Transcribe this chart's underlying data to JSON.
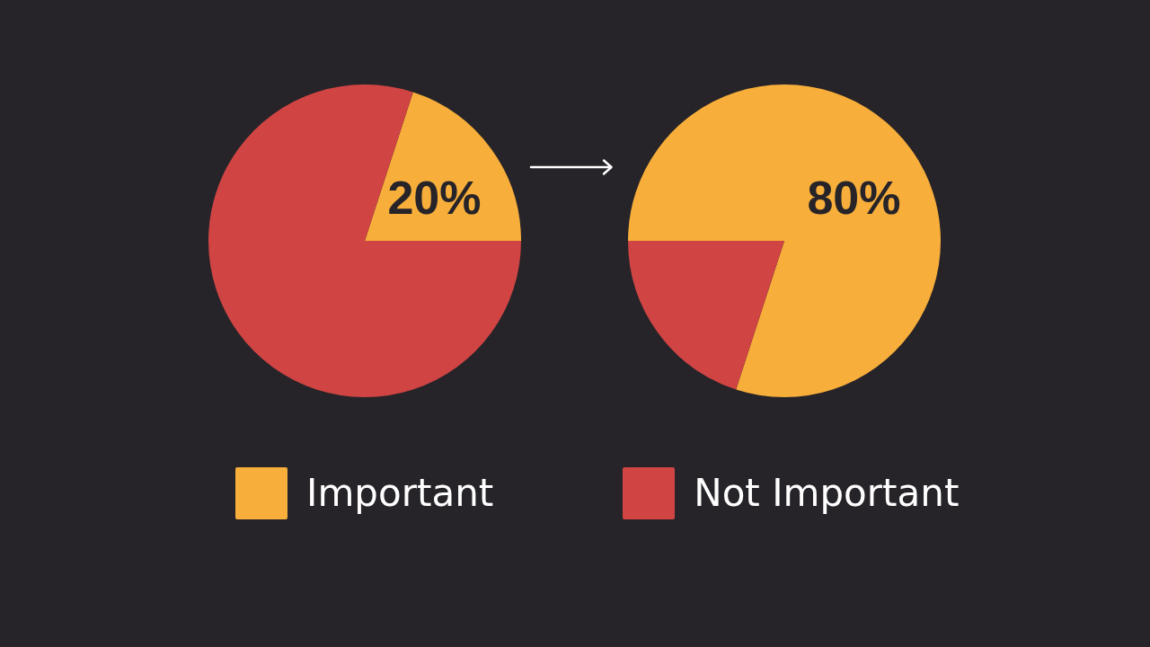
{
  "chart_data": {
    "type": "pie",
    "categories": [
      "Important",
      "Not Important"
    ],
    "colors": [
      "#f7ae3b",
      "#d04444"
    ],
    "legend": "bottom",
    "series": [
      {
        "values": [
          20,
          80
        ],
        "value_labels": [
          "20%",
          null
        ]
      },
      {
        "values": [
          80,
          20
        ],
        "value_labels": [
          "80%",
          null
        ]
      }
    ]
  }
}
